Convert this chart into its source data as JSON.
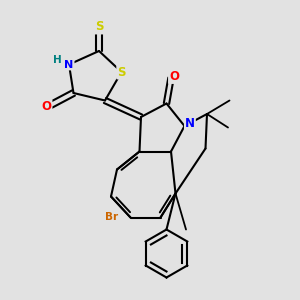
{
  "bg_color": "#e2e2e2",
  "bond_color": "#000000",
  "atom_colors": {
    "S": "#cccc00",
    "N": "#0000ff",
    "O": "#ff0000",
    "H": "#008080",
    "Br": "#cc6600",
    "C": "#000000"
  },
  "figsize": [
    3.0,
    3.0
  ],
  "dpi": 100
}
